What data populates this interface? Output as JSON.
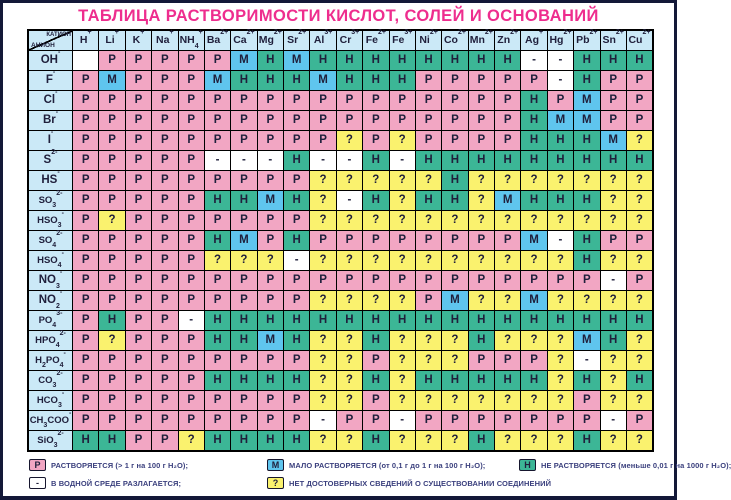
{
  "title": "ТАБЛИЦА РАСТВОРИМОСТИ КИСЛОТ, СОЛЕЙ И ОСНОВАНИЙ",
  "corner": {
    "cation_label": "КАТИОН",
    "anion_label": "АНИОН"
  },
  "chart_data": {
    "type": "table",
    "title": "ТАБЛИЦА РАСТВОРИМОСТИ КИСЛОТ, СОЛЕЙ И ОСНОВАНИЙ",
    "columns": [
      "H^+",
      "Li^+",
      "K^+",
      "Na^+",
      "NH_4^+",
      "Ba^2+",
      "Ca^2+",
      "Mg^2+",
      "Sr^2+",
      "Al^3+",
      "Cr^3+",
      "Fe^2+",
      "Fe^3+",
      "Ni^2+",
      "Co^2+",
      "Mn^2+",
      "Zn^2+",
      "Ag^+",
      "Hg^2+",
      "Pb^2+",
      "Sn^2+",
      "Cu^2+"
    ],
    "row_labels": [
      "OH^-",
      "F^-",
      "Cl^-",
      "Br^-",
      "I^-",
      "S^2-",
      "HS^-",
      "SO_3^2-",
      "HSO_3^-",
      "SO_4^2-",
      "HSO_4^-",
      "NO_3^-",
      "NO_2^-",
      "PO_4^3-",
      "HPO_4^2-",
      "H_2PO_4^-",
      "CO_3^2-",
      "HCO_3^-",
      "CH_3COO^-",
      "SiO_3^2-"
    ],
    "values": [
      [
        "",
        "Р",
        "Р",
        "Р",
        "Р",
        "Р",
        "М",
        "Н",
        "М",
        "Н",
        "Н",
        "Н",
        "Н",
        "Н",
        "Н",
        "Н",
        "Н",
        "-",
        "-",
        "Н",
        "Н",
        "Н"
      ],
      [
        "Р",
        "М",
        "Р",
        "Р",
        "Р",
        "М",
        "Н",
        "Н",
        "Н",
        "М",
        "Н",
        "Н",
        "Н",
        "Р",
        "Р",
        "Р",
        "Р",
        "Р",
        "-",
        "Н",
        "Р",
        "Р"
      ],
      [
        "Р",
        "Р",
        "Р",
        "Р",
        "Р",
        "Р",
        "Р",
        "Р",
        "Р",
        "Р",
        "Р",
        "Р",
        "Р",
        "Р",
        "Р",
        "Р",
        "Р",
        "Н",
        "Р",
        "М",
        "Р",
        "Р"
      ],
      [
        "Р",
        "Р",
        "Р",
        "Р",
        "Р",
        "Р",
        "Р",
        "Р",
        "Р",
        "Р",
        "Р",
        "Р",
        "Р",
        "Р",
        "Р",
        "Р",
        "Р",
        "Н",
        "М",
        "М",
        "Р",
        "Р"
      ],
      [
        "Р",
        "Р",
        "Р",
        "Р",
        "Р",
        "Р",
        "Р",
        "Р",
        "Р",
        "Р",
        "?",
        "Р",
        "?",
        "Р",
        "Р",
        "Р",
        "Р",
        "Н",
        "Н",
        "Н",
        "М",
        "?"
      ],
      [
        "Р",
        "Р",
        "Р",
        "Р",
        "Р",
        "-",
        "-",
        "-",
        "Н",
        "-",
        "-",
        "Н",
        "-",
        "Н",
        "Н",
        "Н",
        "Н",
        "Н",
        "Н",
        "Н",
        "Н",
        "Н"
      ],
      [
        "Р",
        "Р",
        "Р",
        "Р",
        "Р",
        "Р",
        "Р",
        "Р",
        "Р",
        "?",
        "?",
        "?",
        "?",
        "?",
        "Н",
        "?",
        "?",
        "?",
        "?",
        "?",
        "?",
        "?"
      ],
      [
        "Р",
        "Р",
        "Р",
        "Р",
        "Р",
        "Н",
        "Н",
        "М",
        "Н",
        "?",
        "-",
        "Н",
        "?",
        "Н",
        "Н",
        "?",
        "М",
        "Н",
        "Н",
        "Н",
        "?",
        "?"
      ],
      [
        "Р",
        "?",
        "Р",
        "Р",
        "Р",
        "Р",
        "Р",
        "Р",
        "Р",
        "?",
        "?",
        "?",
        "?",
        "?",
        "?",
        "?",
        "?",
        "?",
        "?",
        "?",
        "?",
        "?"
      ],
      [
        "Р",
        "Р",
        "Р",
        "Р",
        "Р",
        "Н",
        "М",
        "Р",
        "Н",
        "Р",
        "Р",
        "Р",
        "Р",
        "Р",
        "Р",
        "Р",
        "Р",
        "М",
        "-",
        "Н",
        "Р",
        "Р"
      ],
      [
        "Р",
        "Р",
        "Р",
        "Р",
        "Р",
        "?",
        "?",
        "?",
        "-",
        "?",
        "?",
        "?",
        "?",
        "?",
        "?",
        "?",
        "?",
        "?",
        "?",
        "Н",
        "?",
        "?"
      ],
      [
        "Р",
        "Р",
        "Р",
        "Р",
        "Р",
        "Р",
        "Р",
        "Р",
        "Р",
        "Р",
        "Р",
        "Р",
        "Р",
        "Р",
        "Р",
        "Р",
        "Р",
        "Р",
        "Р",
        "Р",
        "-",
        "Р"
      ],
      [
        "Р",
        "Р",
        "Р",
        "Р",
        "Р",
        "Р",
        "Р",
        "Р",
        "Р",
        "?",
        "?",
        "?",
        "?",
        "Р",
        "М",
        "?",
        "?",
        "М",
        "?",
        "?",
        "?",
        "?"
      ],
      [
        "Р",
        "Н",
        "Р",
        "Р",
        "-",
        "Н",
        "Н",
        "Н",
        "Н",
        "Н",
        "Н",
        "Н",
        "Н",
        "Н",
        "Н",
        "Н",
        "Н",
        "Н",
        "Н",
        "Н",
        "Н",
        "Н"
      ],
      [
        "Р",
        "?",
        "Р",
        "Р",
        "Р",
        "Н",
        "Н",
        "М",
        "Н",
        "?",
        "?",
        "Н",
        "?",
        "?",
        "?",
        "Н",
        "?",
        "?",
        "?",
        "М",
        "Н",
        "?"
      ],
      [
        "Р",
        "Р",
        "Р",
        "Р",
        "Р",
        "Р",
        "Р",
        "Р",
        "Р",
        "?",
        "?",
        "Р",
        "?",
        "?",
        "?",
        "Р",
        "Р",
        "Р",
        "?",
        "-",
        "?",
        "?"
      ],
      [
        "Р",
        "Р",
        "Р",
        "Р",
        "Р",
        "Н",
        "Н",
        "Н",
        "Н",
        "?",
        "?",
        "Н",
        "?",
        "Н",
        "Н",
        "Н",
        "Н",
        "Н",
        "?",
        "Н",
        "?",
        "Н"
      ],
      [
        "Р",
        "Р",
        "Р",
        "Р",
        "Р",
        "Р",
        "Р",
        "Р",
        "Р",
        "?",
        "?",
        "Р",
        "?",
        "?",
        "?",
        "?",
        "?",
        "?",
        "?",
        "Р",
        "?",
        "?"
      ],
      [
        "Р",
        "Р",
        "Р",
        "Р",
        "Р",
        "Р",
        "Р",
        "Р",
        "Р",
        "-",
        "Р",
        "Р",
        "-",
        "Р",
        "Р",
        "Р",
        "Р",
        "Р",
        "Р",
        "Р",
        "-",
        "Р"
      ],
      [
        "Н",
        "Н",
        "Р",
        "Р",
        "?",
        "Н",
        "Н",
        "Н",
        "Н",
        "?",
        "?",
        "Н",
        "?",
        "?",
        "?",
        "Н",
        "?",
        "?",
        "?",
        "Н",
        "?",
        "?"
      ]
    ]
  },
  "legend": {
    "items": [
      {
        "symbol": "Р",
        "key": "soluble",
        "color": "#F2A6C3",
        "label": "РАСТВОРЯЕТСЯ (> 1 г на 100 г Н₂О);"
      },
      {
        "symbol": "М",
        "key": "slightly-soluble",
        "color": "#5FC5EE",
        "label": "МАЛО РАСТВОРЯЕТСЯ (от 0,1 г до 1 г на 100 г Н₂О);"
      },
      {
        "symbol": "Н",
        "key": "insoluble",
        "color": "#3CB696",
        "label": "НЕ РАСТВОРЯЕТСЯ (меньше 0,01 г на 1000 г Н₂О);"
      },
      {
        "symbol": "-",
        "key": "decomposes",
        "color": "#FFFFFF",
        "label": "В ВОДНОЙ СРЕДЕ РАЗЛАГАЕТСЯ;"
      },
      {
        "symbol": "?",
        "key": "unknown",
        "color": "#FAF26E",
        "label": "НЕТ ДОСТОВЕРНЫХ СВЕДЕНИЙ О СУЩЕСТВОВАНИИ СОЕДИНЕНИЙ"
      }
    ]
  },
  "colors": {
    "soluble": "#F2A6C3",
    "slightly_soluble": "#5FC5EE",
    "insoluble": "#3CB696",
    "unknown": "#FAF26E",
    "decomposes": "#FFFFFF",
    "header_bg": "#CBE9F7",
    "title": "#EE2D8E",
    "grid": "#000000"
  }
}
